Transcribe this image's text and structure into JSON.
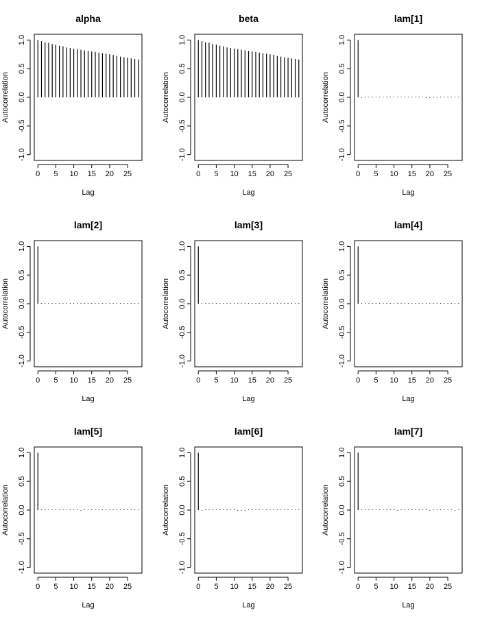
{
  "chart_data": [
    {
      "type": "bar",
      "title": "alpha",
      "xlabel": "Lag",
      "ylabel": "Autocorrelation",
      "xlim": [
        -1,
        29
      ],
      "ylim": [
        -1.1,
        1.1
      ],
      "xticks": [
        "0",
        "5",
        "10",
        "15",
        "20",
        "25"
      ],
      "yticks": [
        "-1.0",
        "-0.5",
        "0.0",
        "0.5",
        "1.0"
      ],
      "x": [
        0,
        1,
        2,
        3,
        4,
        5,
        6,
        7,
        8,
        9,
        10,
        11,
        12,
        13,
        14,
        15,
        16,
        17,
        18,
        19,
        20,
        21,
        22,
        23,
        24,
        25,
        26,
        27,
        28
      ],
      "values": [
        1.0,
        0.98,
        0.96,
        0.95,
        0.93,
        0.92,
        0.9,
        0.89,
        0.87,
        0.86,
        0.85,
        0.84,
        0.83,
        0.82,
        0.81,
        0.8,
        0.79,
        0.78,
        0.77,
        0.76,
        0.75,
        0.74,
        0.72,
        0.71,
        0.7,
        0.69,
        0.68,
        0.67,
        0.66
      ]
    },
    {
      "type": "bar",
      "title": "beta",
      "xlabel": "Lag",
      "ylabel": "Autocorrelation",
      "xlim": [
        -1,
        29
      ],
      "ylim": [
        -1.1,
        1.1
      ],
      "xticks": [
        "0",
        "5",
        "10",
        "15",
        "20",
        "25"
      ],
      "yticks": [
        "-1.0",
        "-0.5",
        "0.0",
        "0.5",
        "1.0"
      ],
      "x": [
        0,
        1,
        2,
        3,
        4,
        5,
        6,
        7,
        8,
        9,
        10,
        11,
        12,
        13,
        14,
        15,
        16,
        17,
        18,
        19,
        20,
        21,
        22,
        23,
        24,
        25,
        26,
        27,
        28
      ],
      "values": [
        1.0,
        0.98,
        0.96,
        0.95,
        0.93,
        0.92,
        0.9,
        0.89,
        0.87,
        0.86,
        0.85,
        0.84,
        0.83,
        0.82,
        0.81,
        0.8,
        0.79,
        0.78,
        0.77,
        0.76,
        0.75,
        0.74,
        0.72,
        0.71,
        0.7,
        0.69,
        0.68,
        0.67,
        0.66
      ]
    },
    {
      "type": "bar",
      "title": "lam[1]",
      "xlabel": "Lag",
      "ylabel": "Autocorrelation",
      "xlim": [
        -1,
        29
      ],
      "ylim": [
        -1.1,
        1.1
      ],
      "xticks": [
        "0",
        "5",
        "10",
        "15",
        "20",
        "25"
      ],
      "yticks": [
        "-1.0",
        "-0.5",
        "0.0",
        "0.5",
        "1.0"
      ],
      "x": [
        0,
        1,
        2,
        3,
        4,
        5,
        6,
        7,
        8,
        9,
        10,
        11,
        12,
        13,
        14,
        15,
        16,
        17,
        18,
        19,
        20,
        21,
        22,
        23,
        24,
        25,
        26,
        27,
        28
      ],
      "values": [
        1.0,
        -0.01,
        0.0,
        0.0,
        0.0,
        0.0,
        0.0,
        0.0,
        0.0,
        0.0,
        0.0,
        0.0,
        0.0,
        0.0,
        0.0,
        0.0,
        0.0,
        0.0,
        0.0,
        -0.01,
        -0.01,
        0.0,
        -0.01,
        0.0,
        0.0,
        0.0,
        0.0,
        0.0,
        0.0
      ]
    },
    {
      "type": "bar",
      "title": "lam[2]",
      "xlabel": "Lag",
      "ylabel": "Autocorrelation",
      "xlim": [
        -1,
        29
      ],
      "ylim": [
        -1.1,
        1.1
      ],
      "xticks": [
        "0",
        "5",
        "10",
        "15",
        "20",
        "25"
      ],
      "yticks": [
        "-1.0",
        "-0.5",
        "0.0",
        "0.5",
        "1.0"
      ],
      "x": [
        0,
        1,
        2,
        3,
        4,
        5,
        6,
        7,
        8,
        9,
        10,
        11,
        12,
        13,
        14,
        15,
        16,
        17,
        18,
        19,
        20,
        21,
        22,
        23,
        24,
        25,
        26,
        27,
        28
      ],
      "values": [
        1.0,
        0.0,
        0.0,
        0.0,
        0.0,
        0.0,
        0.0,
        0.0,
        0.0,
        0.0,
        0.0,
        0.0,
        0.0,
        0.0,
        0.0,
        0.0,
        0.0,
        0.0,
        0.0,
        0.0,
        0.0,
        0.0,
        0.0,
        0.0,
        0.0,
        0.01,
        0.0,
        0.0,
        0.0
      ]
    },
    {
      "type": "bar",
      "title": "lam[3]",
      "xlabel": "Lag",
      "ylabel": "Autocorrelation",
      "xlim": [
        -1,
        29
      ],
      "ylim": [
        -1.1,
        1.1
      ],
      "xticks": [
        "0",
        "5",
        "10",
        "15",
        "20",
        "25"
      ],
      "yticks": [
        "-1.0",
        "-0.5",
        "0.0",
        "0.5",
        "1.0"
      ],
      "x": [
        0,
        1,
        2,
        3,
        4,
        5,
        6,
        7,
        8,
        9,
        10,
        11,
        12,
        13,
        14,
        15,
        16,
        17,
        18,
        19,
        20,
        21,
        22,
        23,
        24,
        25,
        26,
        27,
        28
      ],
      "values": [
        1.0,
        0.0,
        0.0,
        0.0,
        0.0,
        0.0,
        0.0,
        0.0,
        0.0,
        0.0,
        0.0,
        0.0,
        0.0,
        0.0,
        0.0,
        0.0,
        0.0,
        0.0,
        0.0,
        0.0,
        0.0,
        0.0,
        0.0,
        0.0,
        0.0,
        0.01,
        0.0,
        0.0,
        0.0
      ]
    },
    {
      "type": "bar",
      "title": "lam[4]",
      "xlabel": "Lag",
      "ylabel": "Autocorrelation",
      "xlim": [
        -1,
        29
      ],
      "ylim": [
        -1.1,
        1.1
      ],
      "xticks": [
        "0",
        "5",
        "10",
        "15",
        "20",
        "25"
      ],
      "yticks": [
        "-1.0",
        "-0.5",
        "0.0",
        "0.5",
        "1.0"
      ],
      "x": [
        0,
        1,
        2,
        3,
        4,
        5,
        6,
        7,
        8,
        9,
        10,
        11,
        12,
        13,
        14,
        15,
        16,
        17,
        18,
        19,
        20,
        21,
        22,
        23,
        24,
        25,
        26,
        27,
        28
      ],
      "values": [
        1.0,
        0.0,
        0.0,
        0.0,
        0.0,
        0.0,
        0.01,
        0.0,
        0.0,
        0.0,
        0.0,
        0.0,
        0.0,
        0.0,
        0.0,
        0.0,
        0.0,
        0.0,
        0.0,
        0.0,
        0.0,
        0.0,
        0.0,
        0.0,
        0.0,
        0.0,
        0.0,
        0.0,
        0.0
      ]
    },
    {
      "type": "bar",
      "title": "lam[5]",
      "xlabel": "Lag",
      "ylabel": "Autocorrelation",
      "xlim": [
        -1,
        29
      ],
      "ylim": [
        -1.1,
        1.1
      ],
      "xticks": [
        "0",
        "5",
        "10",
        "15",
        "20",
        "25"
      ],
      "yticks": [
        "-1.0",
        "-0.5",
        "0.0",
        "0.5",
        "1.0"
      ],
      "x": [
        0,
        1,
        2,
        3,
        4,
        5,
        6,
        7,
        8,
        9,
        10,
        11,
        12,
        13,
        14,
        15,
        16,
        17,
        18,
        19,
        20,
        21,
        22,
        23,
        24,
        25,
        26,
        27,
        28
      ],
      "values": [
        1.0,
        0.0,
        0.0,
        0.0,
        0.0,
        0.0,
        0.0,
        0.0,
        0.0,
        0.0,
        0.0,
        0.0,
        -0.01,
        0.0,
        0.0,
        0.0,
        0.0,
        0.0,
        0.0,
        0.0,
        0.0,
        0.0,
        0.0,
        0.0,
        0.0,
        0.0,
        0.0,
        0.0,
        0.0
      ]
    },
    {
      "type": "bar",
      "title": "lam[6]",
      "xlabel": "Lag",
      "ylabel": "Autocorrelation",
      "xlim": [
        -1,
        29
      ],
      "ylim": [
        -1.1,
        1.1
      ],
      "xticks": [
        "0",
        "5",
        "10",
        "15",
        "20",
        "25"
      ],
      "yticks": [
        "-1.0",
        "-0.5",
        "0.0",
        "0.5",
        "1.0"
      ],
      "x": [
        0,
        1,
        2,
        3,
        4,
        5,
        6,
        7,
        8,
        9,
        10,
        11,
        12,
        13,
        14,
        15,
        16,
        17,
        18,
        19,
        20,
        21,
        22,
        23,
        24,
        25,
        26,
        27,
        28
      ],
      "values": [
        1.0,
        -0.01,
        0.0,
        0.0,
        0.0,
        0.0,
        0.0,
        0.0,
        0.0,
        0.0,
        0.0,
        -0.01,
        -0.01,
        -0.01,
        0.0,
        0.0,
        0.0,
        0.0,
        0.0,
        0.0,
        0.0,
        0.0,
        0.0,
        0.0,
        0.0,
        0.0,
        0.0,
        0.0,
        0.0
      ]
    },
    {
      "type": "bar",
      "title": "lam[7]",
      "xlabel": "Lag",
      "ylabel": "Autocorrelation",
      "xlim": [
        -1,
        29
      ],
      "ylim": [
        -1.1,
        1.1
      ],
      "xticks": [
        "0",
        "5",
        "10",
        "15",
        "20",
        "25"
      ],
      "yticks": [
        "-1.0",
        "-0.5",
        "0.0",
        "0.5",
        "1.0"
      ],
      "x": [
        0,
        1,
        2,
        3,
        4,
        5,
        6,
        7,
        8,
        9,
        10,
        11,
        12,
        13,
        14,
        15,
        16,
        17,
        18,
        19,
        20,
        21,
        22,
        23,
        24,
        25,
        26,
        27,
        28
      ],
      "values": [
        1.0,
        0.0,
        0.0,
        0.0,
        0.0,
        0.0,
        0.0,
        0.0,
        0.0,
        0.0,
        0.0,
        -0.01,
        0.0,
        0.0,
        0.0,
        0.0,
        0.0,
        0.0,
        0.0,
        0.0,
        -0.01,
        0.0,
        0.0,
        0.0,
        0.0,
        0.0,
        0.0,
        -0.01,
        0.0
      ]
    }
  ]
}
